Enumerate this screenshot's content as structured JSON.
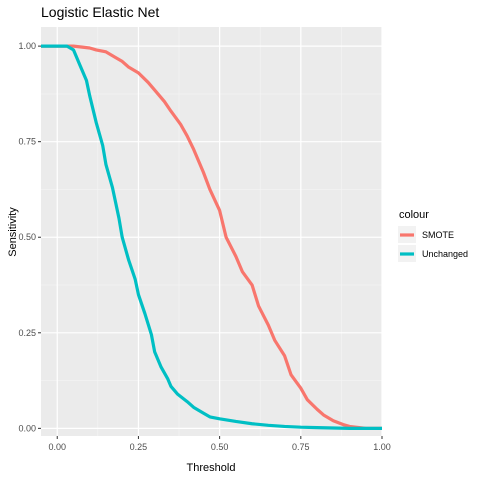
{
  "chart_data": {
    "type": "line",
    "title": "Logistic Elastic Net",
    "xlabel": "Threshold",
    "ylabel": "Sensitivity",
    "xlim": [
      -0.05,
      1.0
    ],
    "ylim": [
      -0.02,
      1.05
    ],
    "x_ticks": [
      0.0,
      0.25,
      0.5,
      0.75,
      1.0
    ],
    "x_tick_labels": [
      "0.00",
      "0.25",
      "0.50",
      "0.75",
      "1.00"
    ],
    "y_ticks": [
      0.0,
      0.25,
      0.5,
      0.75,
      1.0
    ],
    "y_tick_labels": [
      "0.00",
      "0.25",
      "0.50",
      "0.75",
      "1.00"
    ],
    "grid": true,
    "legend": {
      "title": "colour",
      "position": "right"
    },
    "series": [
      {
        "name": "SMOTE",
        "color": "#F8766D",
        "x": [
          -0.05,
          0.0,
          0.05,
          0.1,
          0.12,
          0.15,
          0.18,
          0.2,
          0.22,
          0.25,
          0.28,
          0.3,
          0.33,
          0.35,
          0.38,
          0.4,
          0.42,
          0.45,
          0.47,
          0.5,
          0.52,
          0.55,
          0.57,
          0.6,
          0.62,
          0.65,
          0.67,
          0.7,
          0.72,
          0.75,
          0.77,
          0.8,
          0.82,
          0.85,
          0.88,
          0.9,
          0.93,
          0.95,
          1.0
        ],
        "y": [
          1.0,
          1.0,
          1.0,
          0.995,
          0.99,
          0.985,
          0.97,
          0.96,
          0.945,
          0.93,
          0.905,
          0.885,
          0.855,
          0.83,
          0.795,
          0.765,
          0.73,
          0.67,
          0.625,
          0.57,
          0.5,
          0.45,
          0.41,
          0.375,
          0.32,
          0.27,
          0.23,
          0.19,
          0.14,
          0.105,
          0.075,
          0.05,
          0.035,
          0.02,
          0.01,
          0.005,
          0.002,
          0.0,
          0.0
        ]
      },
      {
        "name": "Unchanged",
        "color": "#00BFC4",
        "x": [
          -0.05,
          0.0,
          0.03,
          0.05,
          0.07,
          0.09,
          0.1,
          0.12,
          0.14,
          0.15,
          0.17,
          0.19,
          0.2,
          0.22,
          0.24,
          0.25,
          0.27,
          0.29,
          0.3,
          0.32,
          0.34,
          0.35,
          0.37,
          0.4,
          0.42,
          0.45,
          0.47,
          0.5,
          0.55,
          0.6,
          0.65,
          0.7,
          0.75,
          0.8,
          0.85,
          0.9,
          1.0
        ],
        "y": [
          1.0,
          1.0,
          1.0,
          0.99,
          0.95,
          0.91,
          0.87,
          0.8,
          0.74,
          0.69,
          0.63,
          0.55,
          0.5,
          0.44,
          0.39,
          0.35,
          0.3,
          0.245,
          0.2,
          0.16,
          0.13,
          0.11,
          0.09,
          0.07,
          0.055,
          0.04,
          0.03,
          0.025,
          0.018,
          0.012,
          0.008,
          0.005,
          0.003,
          0.002,
          0.001,
          0.0,
          0.0
        ]
      }
    ]
  }
}
